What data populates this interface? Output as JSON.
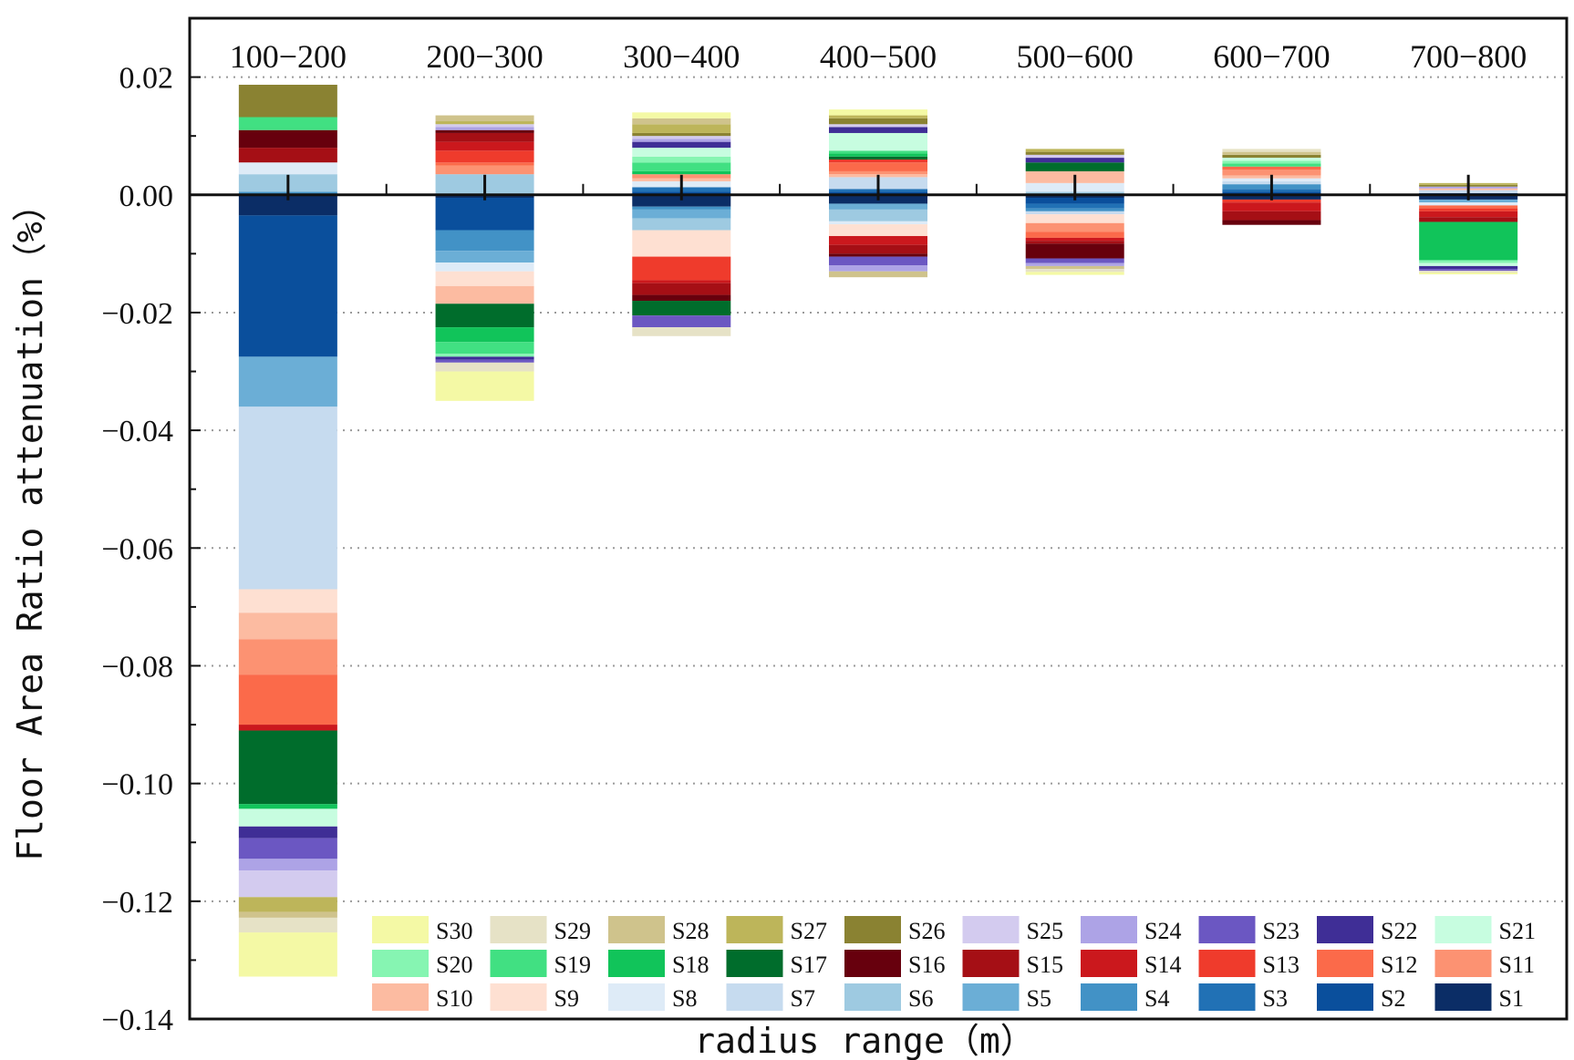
{
  "chart_data": {
    "type": "bar",
    "stacked": true,
    "title": "",
    "xlabel": "radius range（m）",
    "ylabel": "Floor Area Ratio attenuation（%）",
    "ylim": [
      -0.14,
      0.03
    ],
    "yticks": [
      0.02,
      0.0,
      -0.02,
      -0.04,
      -0.06,
      -0.08,
      -0.1,
      -0.12,
      -0.14
    ],
    "ytick_labels": [
      "0.02",
      "0.00",
      "−0.02",
      "−0.04",
      "−0.06",
      "−0.08",
      "−0.10",
      "−0.12",
      "−0.14"
    ],
    "grid": "horizontal dotted",
    "legend_position": "bottom-right inside",
    "categories": [
      "100−200",
      "200−300",
      "300−400",
      "400−500",
      "500−600",
      "600−700",
      "700−800"
    ],
    "series": [
      {
        "name": "S1",
        "color": "#0b2d66",
        "values": [
          -0.0035,
          -0.0005,
          -0.002,
          -0.0015,
          -0.0005,
          -0.0008,
          -0.0008
        ]
      },
      {
        "name": "S2",
        "color": "#0a4f9c",
        "values": [
          -0.024,
          -0.0055,
          0.0005,
          0.0005,
          -0.001,
          0.0005,
          0.0003
        ]
      },
      {
        "name": "S3",
        "color": "#2171b5",
        "values": [
          0.0,
          0.0,
          0.0008,
          0.0005,
          -0.0008,
          0.0005,
          0.0
        ]
      },
      {
        "name": "S4",
        "color": "#4292c6",
        "values": [
          0.0005,
          -0.0035,
          -0.0005,
          0.0,
          -0.0005,
          0.0008,
          0.0
        ]
      },
      {
        "name": "S5",
        "color": "#6baed6",
        "values": [
          -0.0085,
          -0.002,
          -0.0015,
          -0.001,
          0.0,
          0.0,
          -0.0005
        ]
      },
      {
        "name": "S6",
        "color": "#9ecae1",
        "values": [
          0.003,
          0.0035,
          -0.002,
          -0.002,
          0.0005,
          0.0,
          0.0
        ]
      },
      {
        "name": "S7",
        "color": "#c6dbef",
        "values": [
          -0.031,
          0.0,
          0.0,
          0.002,
          -0.0005,
          0.0005,
          0.0005
        ]
      },
      {
        "name": "S8",
        "color": "#deebf7",
        "values": [
          0.002,
          -0.0015,
          0.001,
          -0.0005,
          0.0015,
          0.0005,
          -0.0005
        ]
      },
      {
        "name": "S9",
        "color": "#fee0d2",
        "values": [
          -0.004,
          -0.0025,
          -0.0045,
          -0.002,
          -0.0015,
          0.0,
          0.0
        ]
      },
      {
        "name": "S10",
        "color": "#fcbba1",
        "values": [
          -0.0045,
          -0.003,
          0.0005,
          0.0005,
          0.002,
          0.0005,
          0.0003
        ]
      },
      {
        "name": "S11",
        "color": "#fc9272",
        "values": [
          -0.006,
          0.0015,
          0.0007,
          0.0005,
          -0.0015,
          0.001,
          0.0
        ]
      },
      {
        "name": "S12",
        "color": "#fb6a4a",
        "values": [
          -0.0085,
          0.0005,
          0.0,
          0.0015,
          -0.001,
          0.0005,
          -0.0005
        ]
      },
      {
        "name": "S13",
        "color": "#ef3b2c",
        "values": [
          0.0,
          0.002,
          -0.004,
          0.0005,
          0.0,
          -0.0005,
          -0.0005
        ]
      },
      {
        "name": "S14",
        "color": "#cb181d",
        "values": [
          -0.001,
          0.0015,
          -0.0005,
          -0.0015,
          -0.0005,
          -0.0015,
          -0.001
        ]
      },
      {
        "name": "S15",
        "color": "#a50f15",
        "values": [
          0.0025,
          0.0015,
          -0.002,
          -0.0015,
          -0.0005,
          -0.0015,
          -0.0008
        ]
      },
      {
        "name": "S16",
        "color": "#67000d",
        "values": [
          0.003,
          0.0005,
          -0.001,
          -0.0005,
          -0.0025,
          -0.0008,
          0.0
        ]
      },
      {
        "name": "S17",
        "color": "#006d2c",
        "values": [
          -0.0125,
          -0.004,
          -0.0025,
          0.0005,
          0.0015,
          0.0,
          0.0
        ]
      },
      {
        "name": "S18",
        "color": "#11c45a",
        "values": [
          -0.0008,
          -0.0025,
          0.0005,
          0.0005,
          0.0,
          0.0,
          -0.0065
        ]
      },
      {
        "name": "S19",
        "color": "#41e082",
        "values": [
          0.0022,
          -0.002,
          0.0015,
          0.0005,
          0.0,
          0.0005,
          0.0
        ]
      },
      {
        "name": "S20",
        "color": "#86f5b2",
        "values": [
          0.0,
          -0.0005,
          0.001,
          0.0,
          0.0,
          0.0005,
          -0.0005
        ]
      },
      {
        "name": "S21",
        "color": "#c7fde0",
        "values": [
          -0.003,
          0.0,
          0.0015,
          0.003,
          0.0,
          0.0005,
          -0.0005
        ]
      },
      {
        "name": "S22",
        "color": "#3f2e96",
        "values": [
          -0.002,
          -0.0005,
          0.001,
          0.001,
          0.0008,
          0.0,
          -0.0005
        ]
      },
      {
        "name": "S23",
        "color": "#6b57c2",
        "values": [
          -0.0035,
          -0.0005,
          -0.002,
          -0.0015,
          -0.0008,
          0.0,
          -0.0003
        ]
      },
      {
        "name": "S24",
        "color": "#ada3e6",
        "values": [
          -0.002,
          0.0005,
          0.0005,
          -0.001,
          -0.0005,
          0.0,
          0.0003
        ]
      },
      {
        "name": "S25",
        "color": "#d3cbef",
        "values": [
          -0.0045,
          0.0005,
          0.0005,
          0.0005,
          0.0005,
          0.0,
          0.0
        ]
      },
      {
        "name": "S26",
        "color": "#8a8232",
        "values": [
          0.0055,
          0.0,
          0.0005,
          0.001,
          0.0005,
          0.0005,
          0.0003
        ]
      },
      {
        "name": "S27",
        "color": "#bdb55a",
        "values": [
          -0.0025,
          0.0005,
          0.0015,
          0.0005,
          0.0005,
          0.0,
          0.0003
        ]
      },
      {
        "name": "S28",
        "color": "#cfc38c",
        "values": [
          -0.001,
          0.001,
          0.001,
          -0.001,
          -0.0005,
          0.0005,
          0.0
        ]
      },
      {
        "name": "S29",
        "color": "#e6e2c6",
        "values": [
          -0.0025,
          -0.0015,
          -0.0015,
          0.0,
          -0.0005,
          0.0005,
          -0.0003
        ]
      },
      {
        "name": "S30",
        "color": "#f4f9a5",
        "values": [
          -0.0075,
          -0.005,
          0.001,
          0.001,
          -0.0005,
          0.0,
          -0.0003
        ]
      }
    ]
  }
}
